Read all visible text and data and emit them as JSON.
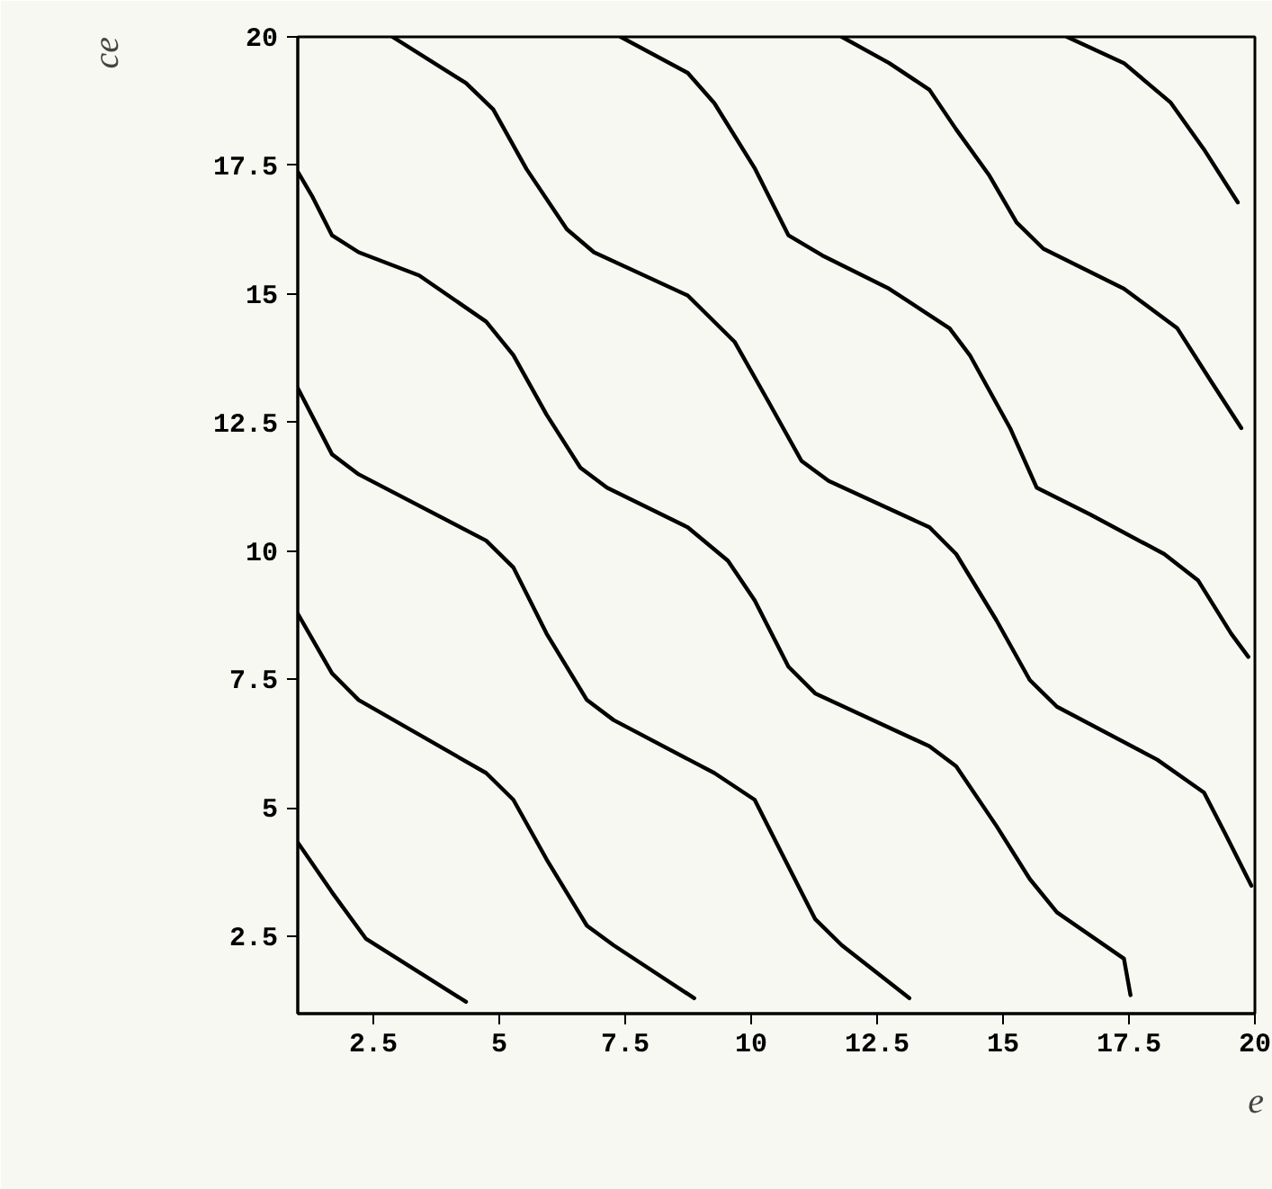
{
  "chart_data": {
    "type": "line",
    "xlabel": "e",
    "ylabel": "ce",
    "xlim": [
      1,
      20
    ],
    "ylim": [
      1,
      20
    ],
    "xticks": [
      2.5,
      5,
      7.5,
      10,
      12.5,
      15,
      17.5,
      20
    ],
    "yticks": [
      2.5,
      5,
      7.5,
      10,
      12.5,
      15,
      17.5,
      20
    ],
    "grid": false,
    "marker": "none",
    "line_style": "solid",
    "series": [
      {
        "color": "#000000",
        "x": [
          2.88,
          4.34,
          4.88,
          5.54,
          6.34,
          6.88,
          8.74,
          9.67,
          10.34,
          11.0,
          11.54,
          13.54,
          14.07,
          14.87,
          15.53,
          16.07,
          18.06,
          18.99,
          19.4,
          19.93
        ],
        "values": [
          20.0,
          19.1,
          18.59,
          17.43,
          16.26,
          15.81,
          14.97,
          14.07,
          12.91,
          11.75,
          11.36,
          10.46,
          9.94,
          8.65,
          7.49,
          6.97,
          5.94,
          5.3,
          4.52,
          3.49
        ]
      },
      {
        "color": "#000000",
        "x": [
          7.41,
          8.74,
          9.27,
          10.08,
          10.74,
          11.41,
          12.74,
          13.94,
          14.34,
          15.14,
          15.67,
          16.73,
          18.2,
          18.87,
          19.53,
          19.87
        ],
        "values": [
          20.0,
          19.3,
          18.71,
          17.43,
          16.14,
          15.75,
          15.1,
          14.33,
          13.81,
          12.39,
          11.23,
          10.71,
          9.94,
          9.43,
          8.39,
          7.94
        ]
      },
      {
        "color": "#000000",
        "x": [
          11.8,
          12.74,
          13.54,
          14.07,
          14.73,
          15.27,
          15.8,
          17.4,
          18.46,
          19.13,
          19.73
        ],
        "values": [
          20.0,
          19.49,
          18.97,
          18.2,
          17.3,
          16.39,
          15.88,
          15.1,
          14.33,
          13.3,
          12.39
        ]
      },
      {
        "color": "#000000",
        "x": [
          16.27,
          17.4,
          18.33,
          18.99,
          19.66
        ],
        "values": [
          20.0,
          19.49,
          18.72,
          17.81,
          16.78
        ]
      },
      {
        "color": "#000000",
        "x": [
          1.01,
          1.28,
          1.68,
          2.21,
          3.41,
          4.74,
          5.28,
          5.94,
          6.61,
          7.14,
          8.74,
          9.54,
          10.07,
          10.74,
          11.27,
          13.54,
          14.07,
          14.87,
          15.53,
          16.07,
          17.4,
          17.53
        ],
        "values": [
          17.36,
          16.91,
          16.14,
          15.81,
          15.36,
          14.46,
          13.81,
          12.65,
          11.62,
          11.23,
          10.46,
          9.81,
          9.04,
          7.75,
          7.23,
          6.2,
          5.81,
          4.65,
          3.62,
          2.97,
          2.07,
          1.36
        ]
      },
      {
        "color": "#000000",
        "x": [
          1.0,
          1.68,
          2.21,
          4.74,
          5.28,
          5.94,
          6.74,
          7.27,
          9.27,
          10.07,
          10.6,
          11.27,
          11.8,
          13.14
        ],
        "values": [
          13.17,
          11.88,
          11.49,
          10.2,
          9.68,
          8.39,
          7.1,
          6.71,
          5.68,
          5.16,
          4.13,
          2.84,
          2.33,
          1.3
        ]
      },
      {
        "color": "#000000",
        "x": [
          1.0,
          1.68,
          2.21,
          4.74,
          5.28,
          5.94,
          6.74,
          7.27,
          8.87
        ],
        "values": [
          8.78,
          7.62,
          7.1,
          5.68,
          5.16,
          4.0,
          2.71,
          2.33,
          1.3
        ]
      },
      {
        "color": "#000000",
        "x": [
          1.0,
          1.68,
          2.35,
          4.34
        ],
        "values": [
          4.33,
          3.36,
          2.46,
          1.23
        ]
      }
    ]
  }
}
